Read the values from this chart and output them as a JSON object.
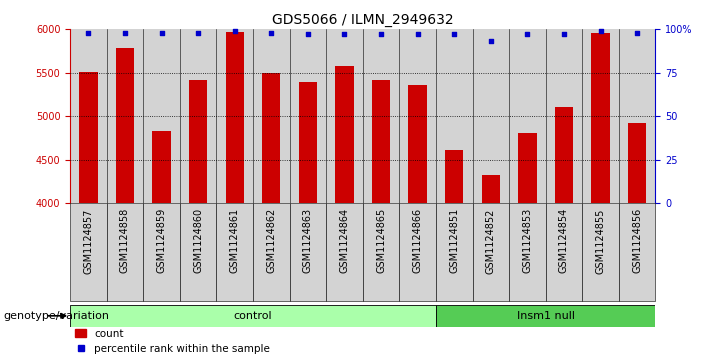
{
  "title": "GDS5066 / ILMN_2949632",
  "samples": [
    "GSM1124857",
    "GSM1124858",
    "GSM1124859",
    "GSM1124860",
    "GSM1124861",
    "GSM1124862",
    "GSM1124863",
    "GSM1124864",
    "GSM1124865",
    "GSM1124866",
    "GSM1124851",
    "GSM1124852",
    "GSM1124853",
    "GSM1124854",
    "GSM1124855",
    "GSM1124856"
  ],
  "bar_values": [
    5510,
    5780,
    4830,
    5420,
    5970,
    5500,
    5390,
    5580,
    5420,
    5360,
    4610,
    4330,
    4810,
    5110,
    5950,
    4920
  ],
  "percentile_values": [
    98,
    98,
    98,
    98,
    99,
    98,
    97,
    97,
    97,
    97,
    97,
    93,
    97,
    97,
    99,
    98
  ],
  "bar_color": "#cc0000",
  "dot_color": "#0000cc",
  "ylim_left": [
    4000,
    6000
  ],
  "ylim_right": [
    0,
    100
  ],
  "yticks_left": [
    4000,
    4500,
    5000,
    5500,
    6000
  ],
  "yticks_right": [
    0,
    25,
    50,
    75,
    100
  ],
  "ytick_labels_right": [
    "0",
    "25",
    "50",
    "75",
    "100%"
  ],
  "grid_values": [
    4500,
    5000,
    5500
  ],
  "n_control": 10,
  "n_insm1": 6,
  "control_label": "control",
  "insm1_label": "Insm1 null",
  "genotype_label": "genotype/variation",
  "legend_count_label": "count",
  "legend_percentile_label": "percentile rank within the sample",
  "control_bg": "#aaffaa",
  "insm1_bg": "#55cc55",
  "sample_bg": "#d3d3d3",
  "bar_width": 0.5,
  "title_fontsize": 10,
  "tick_fontsize": 7,
  "label_fontsize": 8
}
